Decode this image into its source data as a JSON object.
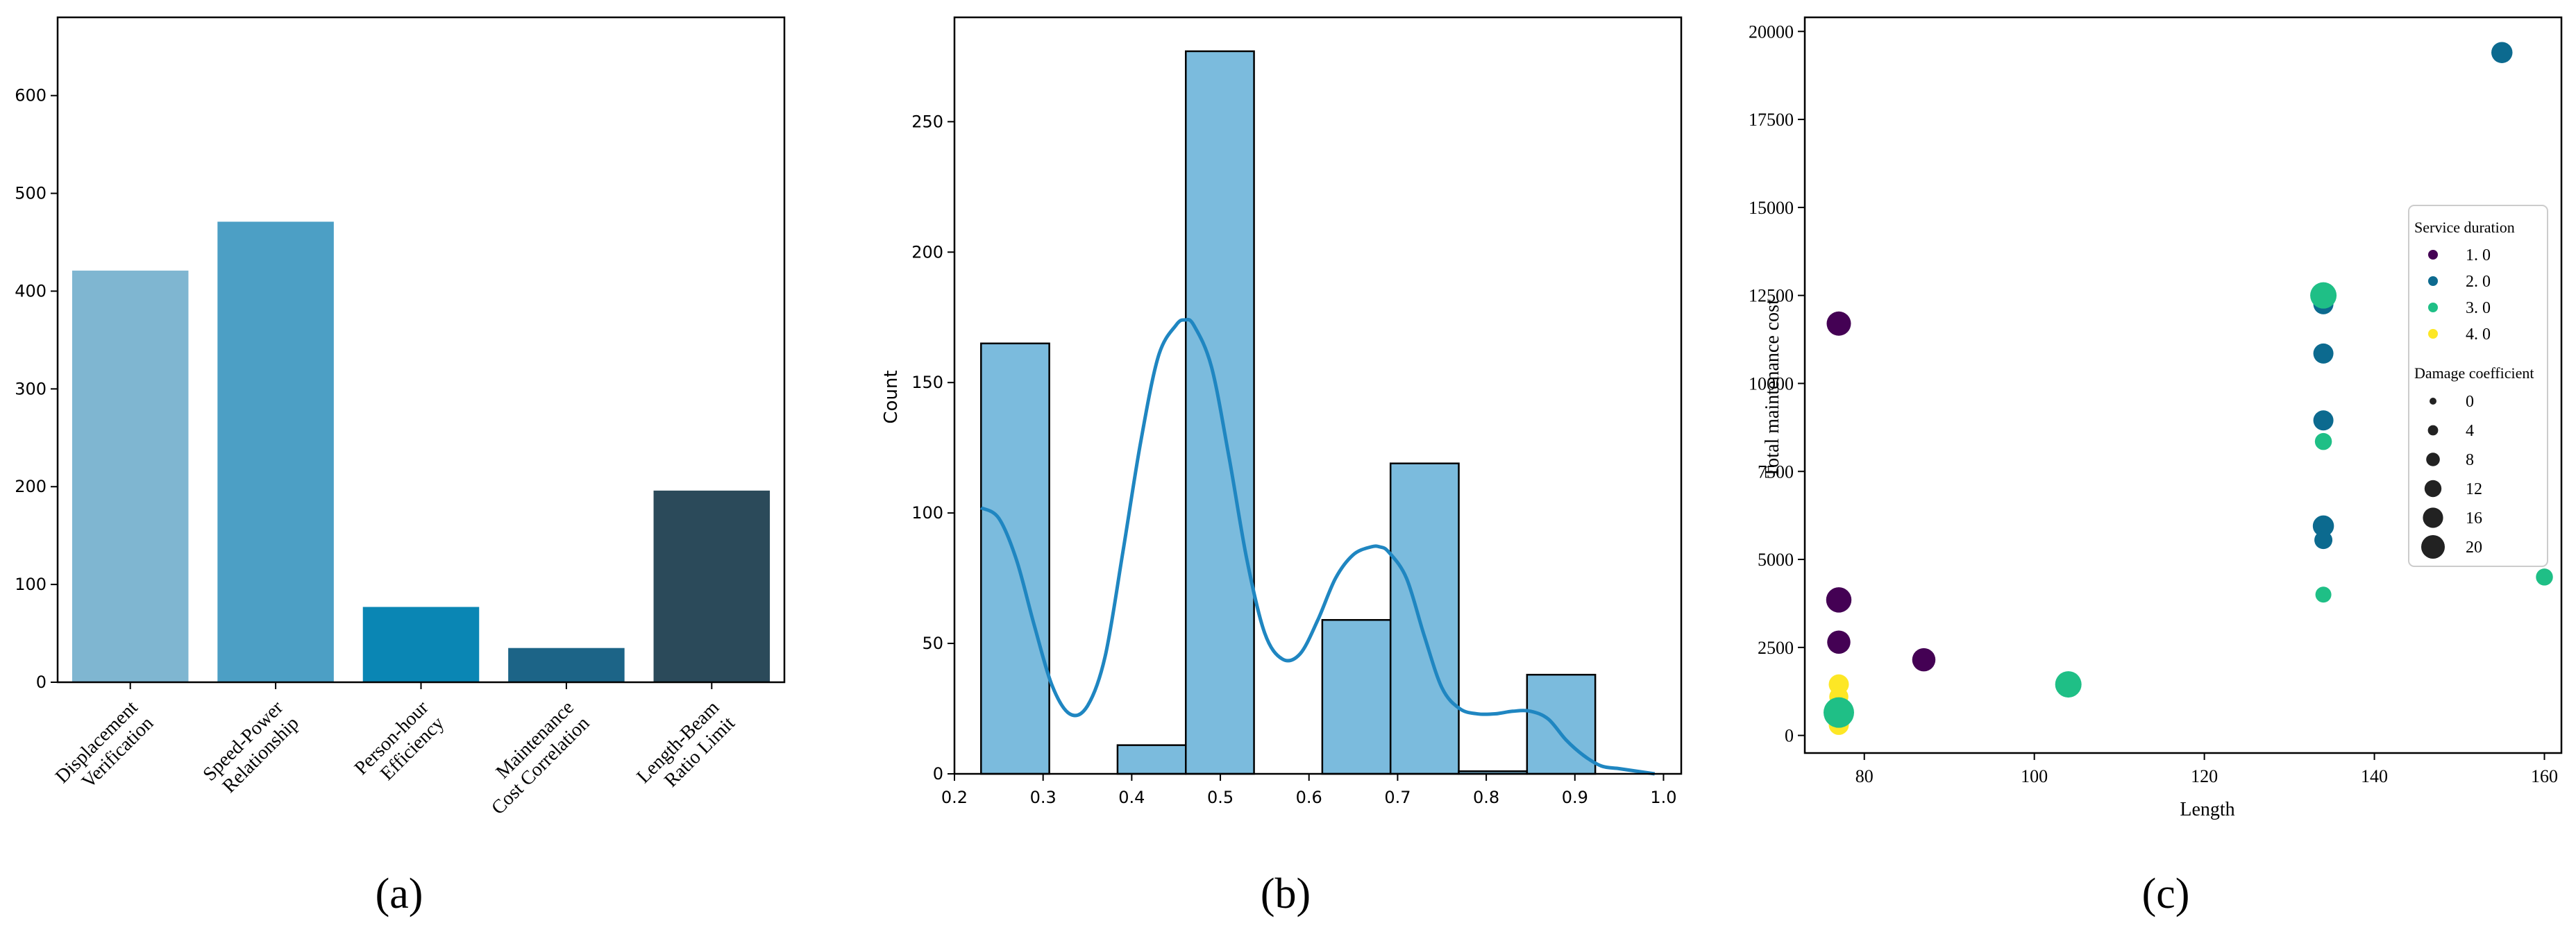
{
  "chart_data": [
    {
      "type": "bar",
      "panel_label": "(a)",
      "categories": [
        "Displacement Verification",
        "Speed-Power Relationship",
        "Person-hour Efficiency",
        "Maintenance Cost Correlation",
        "Length-Beam Ratio Limit"
      ],
      "category_lines": [
        [
          "Displacement",
          "Verification"
        ],
        [
          "Speed-Power",
          "Relationship"
        ],
        [
          "Person-hour",
          "Efficiency"
        ],
        [
          "Maintenance",
          "Cost Correlation"
        ],
        [
          "Length-Beam",
          "Ratio Limit"
        ]
      ],
      "values": [
        421,
        471,
        77,
        35,
        196
      ],
      "colors": [
        "#7fb6d1",
        "#4c9fc5",
        "#0a86b4",
        "#1c6487",
        "#2b4a5a"
      ],
      "ylim": [
        0,
        680
      ],
      "yticks": [
        0,
        100,
        200,
        300,
        400,
        500,
        600
      ],
      "xlabel": "",
      "ylabel": "",
      "grid": false
    },
    {
      "type": "bar",
      "subtype": "histogram-with-kde",
      "panel_label": "(b)",
      "bins": [
        {
          "x0": 0.23,
          "x1": 0.307,
          "count": 165
        },
        {
          "x0": 0.307,
          "x1": 0.384,
          "count": 0
        },
        {
          "x0": 0.384,
          "x1": 0.461,
          "count": 11
        },
        {
          "x0": 0.461,
          "x1": 0.538,
          "count": 277
        },
        {
          "x0": 0.538,
          "x1": 0.615,
          "count": 0
        },
        {
          "x0": 0.615,
          "x1": 0.692,
          "count": 59
        },
        {
          "x0": 0.692,
          "x1": 0.769,
          "count": 119
        },
        {
          "x0": 0.769,
          "x1": 0.846,
          "count": 1
        },
        {
          "x0": 0.846,
          "x1": 0.923,
          "count": 38
        }
      ],
      "kde": {
        "x": [
          0.23,
          0.25,
          0.27,
          0.29,
          0.31,
          0.33,
          0.35,
          0.37,
          0.39,
          0.41,
          0.43,
          0.45,
          0.46,
          0.47,
          0.49,
          0.51,
          0.53,
          0.55,
          0.57,
          0.59,
          0.61,
          0.63,
          0.65,
          0.67,
          0.68,
          0.69,
          0.71,
          0.73,
          0.75,
          0.77,
          0.79,
          0.81,
          0.83,
          0.85,
          0.87,
          0.89,
          0.91,
          0.93,
          0.95,
          0.97,
          0.99
        ],
        "y": [
          102,
          98,
          82,
          57,
          34,
          23,
          26,
          45,
          85,
          127,
          160,
          172,
          174,
          172,
          156,
          121,
          82,
          54,
          44,
          46,
          59,
          75,
          84,
          87,
          87,
          85,
          75,
          53,
          33,
          25,
          23,
          23,
          24,
          24,
          21,
          13,
          7,
          3,
          2,
          1,
          0
        ]
      },
      "bar_color": "#7bbbdd",
      "kde_color": "#1f86c1",
      "xlim": [
        0.2,
        1.02
      ],
      "ylim": [
        0,
        290
      ],
      "xticks": [
        "0.2",
        "0.3",
        "0.4",
        "0.5",
        "0.6",
        "0.7",
        "0.8",
        "0.9",
        "1.0"
      ],
      "yticks": [
        0,
        50,
        100,
        150,
        200,
        250
      ],
      "xlabel": "",
      "ylabel": "Count",
      "grid": false
    },
    {
      "type": "scatter",
      "panel_label": "(c)",
      "xlabel": "Length",
      "ylabel": "Total maintenance cost",
      "xlim": [
        73,
        162
      ],
      "ylim": [
        -500,
        20400
      ],
      "xticks": [
        80,
        100,
        120,
        140,
        160
      ],
      "yticks": [
        0,
        2500,
        5000,
        7500,
        10000,
        12500,
        15000,
        17500,
        20000
      ],
      "legend_position": "right",
      "hue_title": "Service duration",
      "size_title": "Damage coefficient",
      "hue_levels": [
        {
          "label": "1. 0",
          "value": 1,
          "color": "#440154"
        },
        {
          "label": "2. 0",
          "value": 2,
          "color": "#0c6a8f"
        },
        {
          "label": "3. 0",
          "value": 3,
          "color": "#1fbf86"
        },
        {
          "label": "4. 0",
          "value": 4,
          "color": "#fde725"
        }
      ],
      "size_levels": [
        0,
        4,
        8,
        12,
        16,
        20
      ],
      "points": [
        {
          "x": 77,
          "y": 11700,
          "hue": 1,
          "size": 14
        },
        {
          "x": 77,
          "y": 3850,
          "hue": 1,
          "size": 15
        },
        {
          "x": 77,
          "y": 2650,
          "hue": 1,
          "size": 13
        },
        {
          "x": 87,
          "y": 2150,
          "hue": 1,
          "size": 13
        },
        {
          "x": 155,
          "y": 19400,
          "hue": 2,
          "size": 11
        },
        {
          "x": 134,
          "y": 12250,
          "hue": 2,
          "size": 10
        },
        {
          "x": 134,
          "y": 10850,
          "hue": 2,
          "size": 10
        },
        {
          "x": 134,
          "y": 8950,
          "hue": 2,
          "size": 10
        },
        {
          "x": 134,
          "y": 5950,
          "hue": 2,
          "size": 11
        },
        {
          "x": 134,
          "y": 5550,
          "hue": 2,
          "size": 8
        },
        {
          "x": 134,
          "y": 12500,
          "hue": 3,
          "size": 16
        },
        {
          "x": 134,
          "y": 8350,
          "hue": 3,
          "size": 7
        },
        {
          "x": 134,
          "y": 4000,
          "hue": 3,
          "size": 6
        },
        {
          "x": 104,
          "y": 1450,
          "hue": 3,
          "size": 16
        },
        {
          "x": 160,
          "y": 4500,
          "hue": 3,
          "size": 7
        },
        {
          "x": 77,
          "y": 1450,
          "hue": 4,
          "size": 10
        },
        {
          "x": 77,
          "y": 1100,
          "hue": 4,
          "size": 9
        },
        {
          "x": 77,
          "y": 800,
          "hue": 4,
          "size": 12
        },
        {
          "x": 77,
          "y": 500,
          "hue": 4,
          "size": 9
        },
        {
          "x": 77,
          "y": 300,
          "hue": 4,
          "size": 10
        },
        {
          "x": 77,
          "y": 650,
          "hue": 3,
          "size": 20
        }
      ]
    }
  ]
}
